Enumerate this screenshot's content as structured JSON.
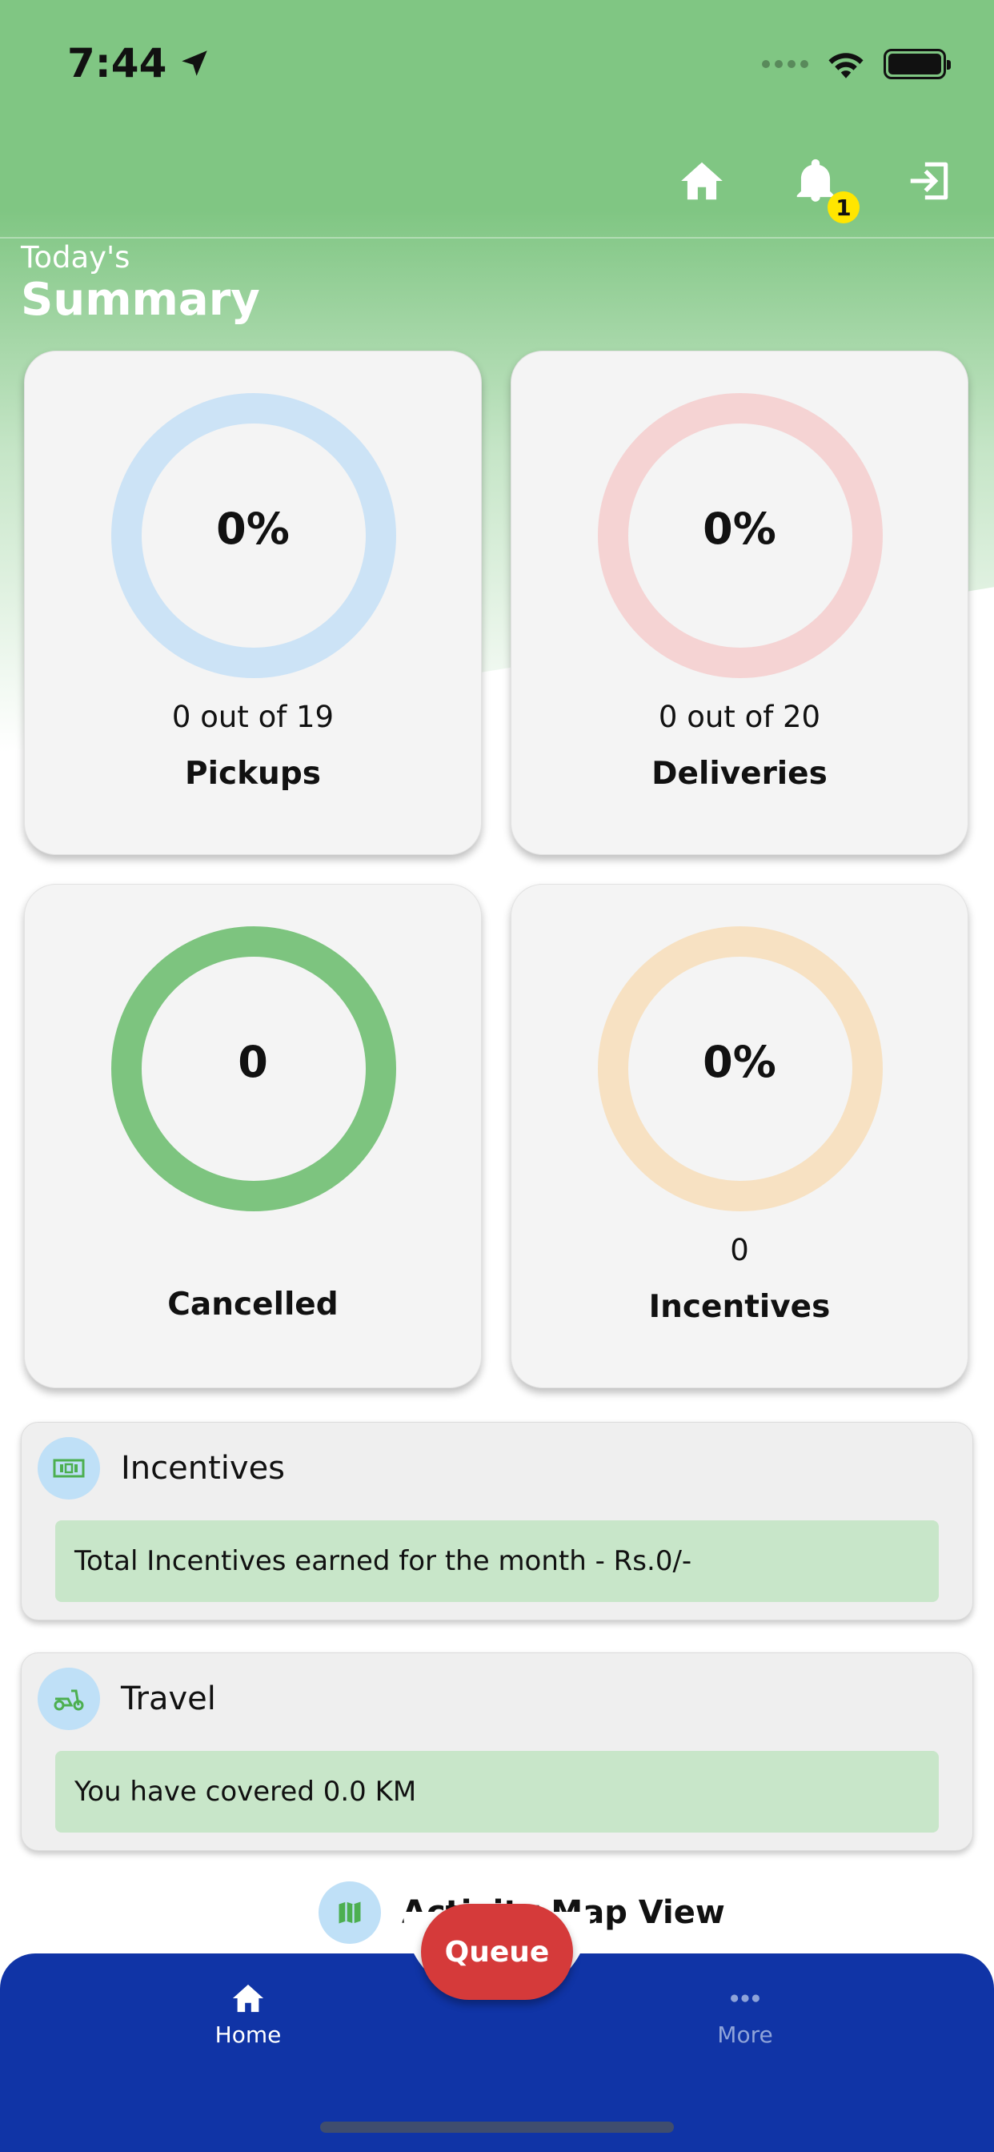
{
  "status_bar": {
    "time": "7:44"
  },
  "header": {
    "notification_count": "1"
  },
  "summary": {
    "subtitle": "Today's",
    "title": "Summary"
  },
  "cards": {
    "pickups": {
      "value": "0%",
      "count": "0 out of 19",
      "label": "Pickups",
      "ring_color": "#cce3f6",
      "progress": 0
    },
    "deliveries": {
      "value": "0%",
      "count": "0 out of 20",
      "label": "Deliveries",
      "ring_color": "#f5d3d3",
      "progress": 0
    },
    "cancelled": {
      "value": "0",
      "label": "Cancelled",
      "ring_color": "#7dc47f"
    },
    "incentives": {
      "value": "0%",
      "count": "0",
      "label": "Incentives",
      "ring_color": "#f7e1c2",
      "progress": 0
    }
  },
  "incentives_box": {
    "title": "Incentives",
    "text": "Total Incentives earned for the month - Rs.0/-",
    "icon": "money-icon"
  },
  "travel_box": {
    "title": "Travel",
    "text": "You have covered 0.0 KM",
    "icon": "scooter-icon"
  },
  "map_view": {
    "label": "Activity Map View",
    "icon": "map-icon"
  },
  "bottom_nav": {
    "home_label": "Home",
    "queue_label": "Queue",
    "more_label": "More"
  },
  "colors": {
    "header_green": "#80c683",
    "nav_blue": "#1034a6",
    "queue_red": "#d53a3a",
    "strip_green": "#c8e6c9"
  }
}
